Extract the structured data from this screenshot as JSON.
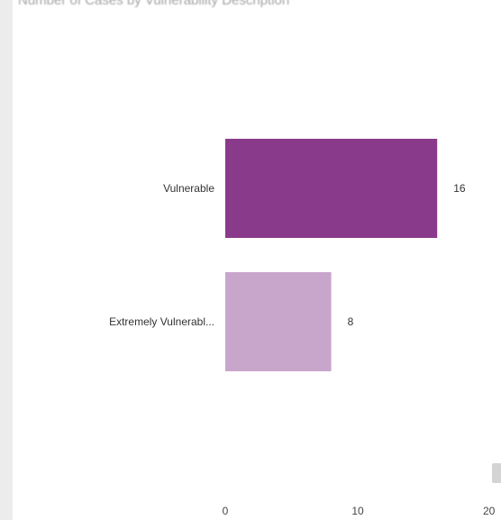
{
  "chart_data": {
    "type": "bar",
    "orientation": "horizontal",
    "title": "Number of Cases by Vulnerability Description",
    "categories": [
      "Vulnerable",
      "Extremely Vulnerabl..."
    ],
    "values": [
      16,
      8
    ],
    "data_labels": [
      "16",
      "8"
    ],
    "colors": [
      "#8a3a8b",
      "#c8a6cc"
    ],
    "xlim": [
      0,
      20
    ],
    "x_ticks": [
      "0",
      "10",
      "20"
    ],
    "grid": false,
    "legend": "none"
  }
}
